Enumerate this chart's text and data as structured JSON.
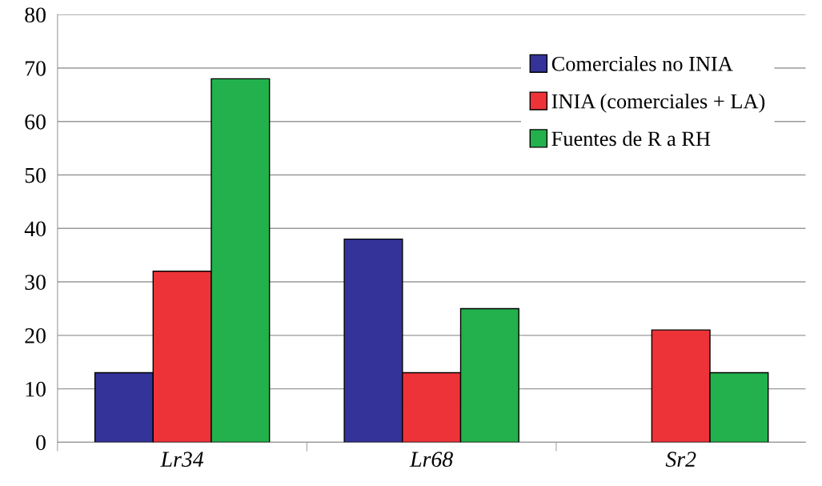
{
  "chart_data": {
    "type": "bar",
    "categories": [
      "Lr34",
      "Lr68",
      "Sr2"
    ],
    "series": [
      {
        "name": "Comerciales no INIA",
        "color": "#333399",
        "values": [
          13,
          38,
          null
        ]
      },
      {
        "name": "INIA (comerciales + LA)",
        "color": "#ee3338",
        "values": [
          32,
          13,
          21
        ]
      },
      {
        "name": "Fuentes de R a RH",
        "color": "#22b14c",
        "values": [
          68,
          25,
          13
        ]
      }
    ],
    "ylim": [
      0,
      80
    ],
    "yticks": [
      0,
      10,
      20,
      30,
      40,
      50,
      60,
      70,
      80
    ],
    "grid": "y",
    "legend": "top right"
  }
}
